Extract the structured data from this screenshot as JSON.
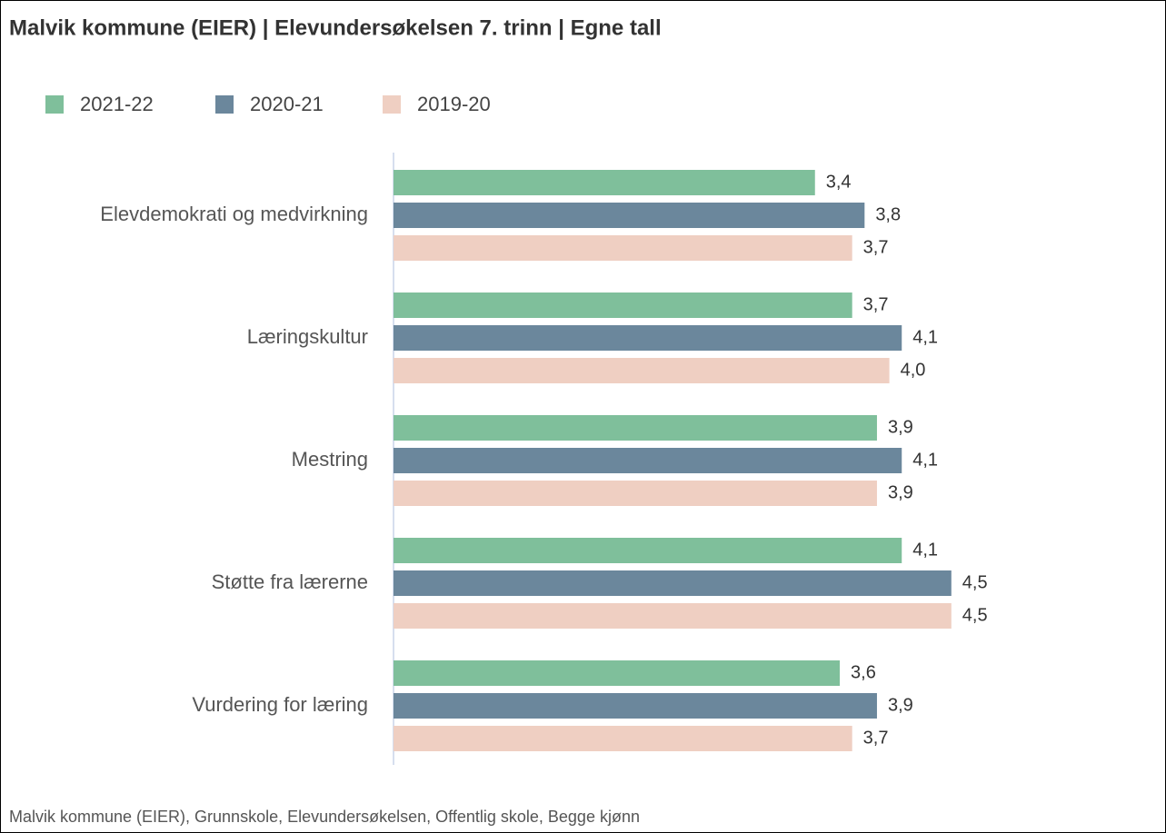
{
  "chart_data": {
    "type": "bar",
    "orientation": "horizontal",
    "title": "Malvik kommune (EIER) | Elevundersøkelsen 7. trinn | Egne tall",
    "categories": [
      "Elevdemokrati og medvirkning",
      "Læringskultur",
      "Mestring",
      "Støtte fra lærerne",
      "Vurdering for læring"
    ],
    "series": [
      {
        "name": "2021-22",
        "color": "#7fbf9b",
        "values": [
          3.4,
          3.7,
          3.9,
          4.1,
          3.6
        ],
        "value_labels": [
          "3,4",
          "3,7",
          "3,9",
          "4,1",
          "3,6"
        ]
      },
      {
        "name": "2020-21",
        "color": "#6b879c",
        "values": [
          3.8,
          4.1,
          4.1,
          4.5,
          3.9
        ],
        "value_labels": [
          "3,8",
          "4,1",
          "4,1",
          "4,5",
          "3,9"
        ]
      },
      {
        "name": "2019-20",
        "color": "#efcfc2",
        "values": [
          3.7,
          4.0,
          3.9,
          4.5,
          3.7
        ],
        "value_labels": [
          "3,7",
          "4,0",
          "3,9",
          "4,5",
          "3,7"
        ]
      }
    ],
    "xlim": [
      0,
      5
    ],
    "legend": "top-left",
    "footnote": "Malvik kommune (EIER), Grunnskole, Elevundersøkelsen, Offentlig skole, Begge kjønn"
  }
}
